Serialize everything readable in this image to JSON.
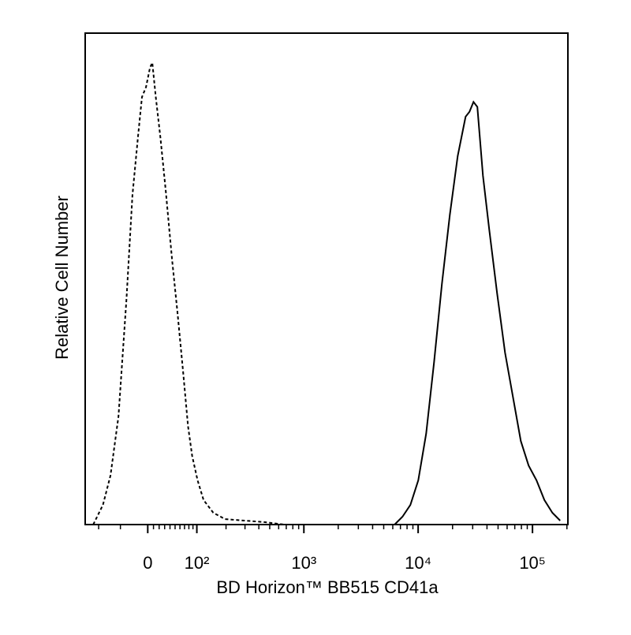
{
  "chart_data": {
    "type": "line",
    "x_label": "BD Horizon™ BB515 CD41a",
    "y_label": "Relative Cell Number",
    "x_scale": "biexponential",
    "xlim": [
      -140,
      204000
    ],
    "ylim": [
      0,
      100
    ],
    "xticks": [
      {
        "value": 0,
        "label": "0"
      },
      {
        "value": 100,
        "label": "10²"
      },
      {
        "value": 1000,
        "label": "10³"
      },
      {
        "value": 10000,
        "label": "10⁴"
      },
      {
        "value": 100000,
        "label": "10⁵"
      }
    ],
    "xminorticks": [
      -100,
      -50,
      10,
      20,
      30,
      40,
      50,
      60,
      70,
      80,
      90,
      200,
      300,
      400,
      500,
      600,
      700,
      800,
      900,
      2000,
      3000,
      4000,
      5000,
      6000,
      7000,
      8000,
      9000,
      20000,
      30000,
      40000,
      50000,
      60000,
      70000,
      80000,
      90000,
      200000
    ],
    "series": [
      {
        "color": "#000000",
        "dashed": true,
        "x": [
          -115,
          -89,
          -71,
          -54,
          -38,
          -27,
          -17,
          -10,
          -3,
          4,
          8,
          14,
          22,
          32,
          44,
          55,
          67,
          78,
          88,
          102,
          119,
          150,
          196,
          299,
          449,
          671
        ],
        "values": [
          0,
          4,
          10,
          22,
          46,
          67,
          79,
          87,
          89,
          93,
          94,
          87,
          79,
          68,
          54,
          43,
          31,
          20,
          14,
          9,
          5,
          2.4,
          1.1,
          0.8,
          0.5,
          0
        ]
      },
      {
        "color": "#000000",
        "dashed": false,
        "x": [
          6230,
          7300,
          8560,
          10030,
          11750,
          13780,
          16150,
          18920,
          22170,
          26000,
          28100,
          30470,
          32970,
          36850,
          41860,
          49080,
          57500,
          67390,
          79000,
          92500,
          108500,
          127100,
          149100,
          174700
        ],
        "values": [
          0,
          1.6,
          4,
          9,
          18.5,
          33,
          49,
          63,
          75,
          83,
          84,
          86,
          85,
          71,
          60,
          47,
          35,
          26,
          17,
          12,
          9,
          5,
          2.4,
          0.8
        ]
      }
    ]
  }
}
